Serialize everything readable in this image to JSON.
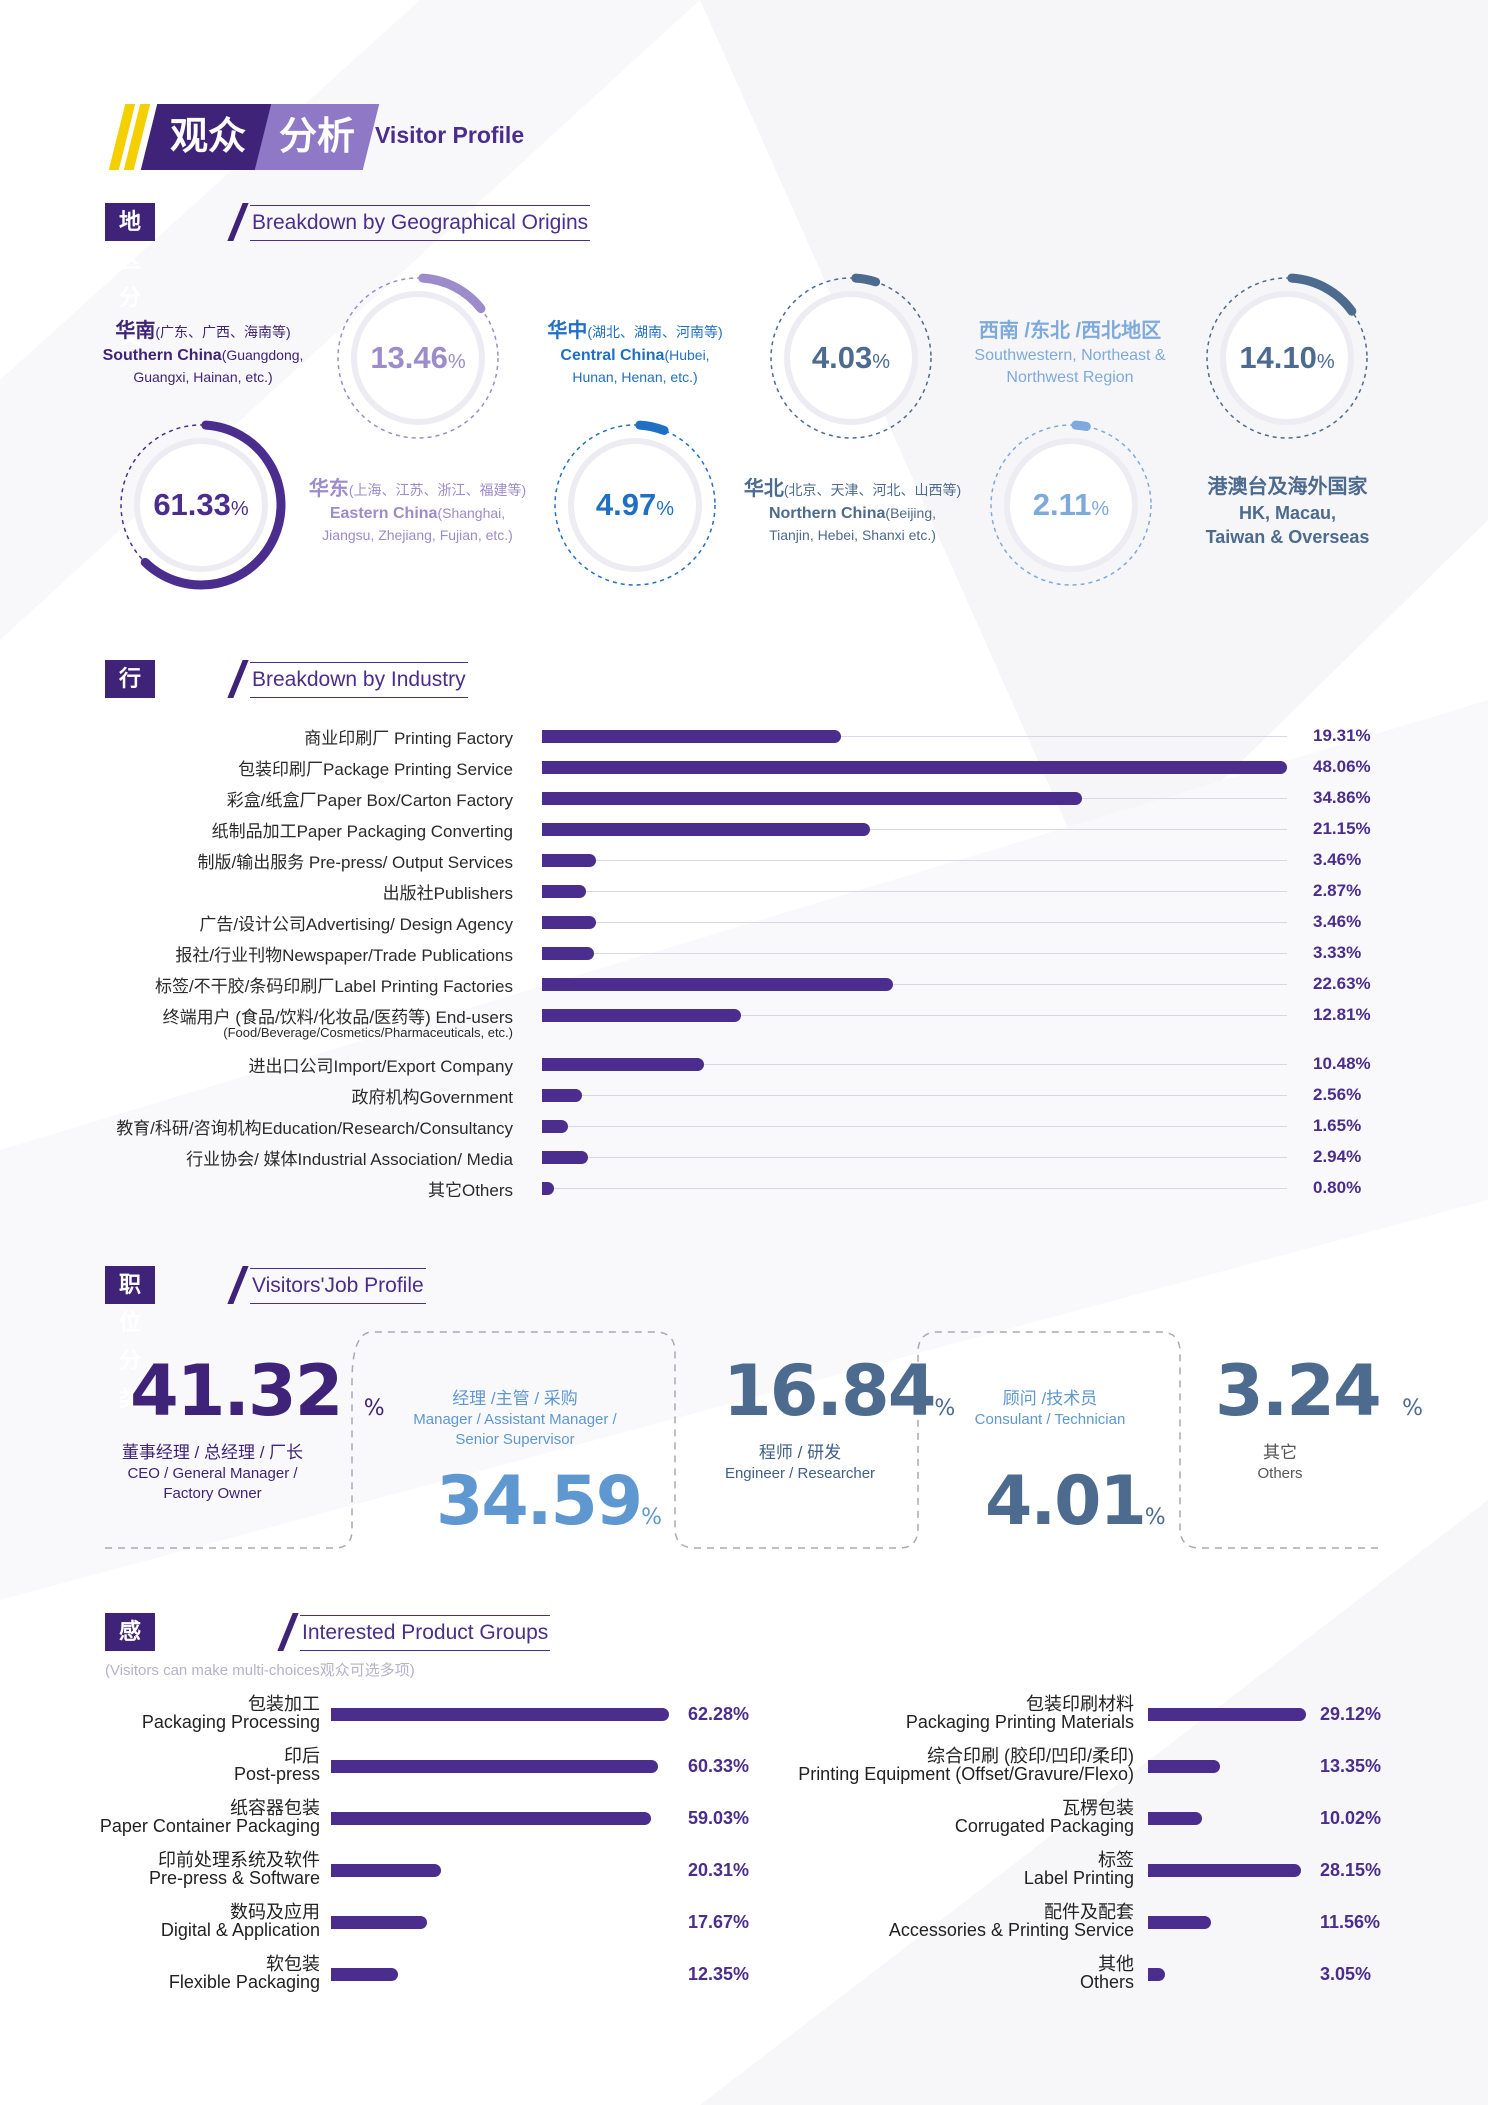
{
  "colors": {
    "purple": "#4a2d8c",
    "dark_purple": "#3f2378",
    "yellow": "#f5d000",
    "light_purple": "#9c8ccb",
    "steel": "#4d6a8f",
    "blue": "#1f6fc4",
    "sky": "#7ea9dc"
  },
  "header": {
    "title_cn_1": "观众",
    "title_cn_2": "分析",
    "title_en": "Visitor Profile"
  },
  "sections": {
    "region": {
      "cn": "地区分类",
      "en": "Breakdown by Geographical Origins"
    },
    "industry": {
      "cn": "行业分类",
      "en": "Breakdown by Industry"
    },
    "job": {
      "cn": "职位分类",
      "en": "Visitors'Job Profile"
    },
    "product": {
      "cn": "感兴趣之展品",
      "en": "Interested Product Groups",
      "note": "(Visitors can make multi-choices观众可选多项)"
    }
  },
  "chart_data": [
    {
      "type": "pie",
      "regions": [
        {
          "cn": "华南",
          "cn_detail": "(广东、广西、海南等)",
          "en": "Southern China",
          "en_detail_1": "(Guangdong,",
          "en_detail_2": "Guangxi, Hainan, etc.)",
          "value": 13.46,
          "pct": "13.46",
          "color": "#9c8ccb"
        },
        {
          "cn": "华东",
          "cn_detail": "(上海、江苏、浙江、福建等)",
          "en": "Eastern China",
          "en_detail_1": "(Shanghai,",
          "en_detail_2": "Jiangsu, Zhejiang, Fujian, etc.)",
          "value": 61.33,
          "pct": "61.33",
          "color": "#4a2d8c"
        },
        {
          "cn": "华中",
          "cn_detail": "(湖北、湖南、河南等)",
          "en": "Central China",
          "en_detail_1": "(Hubei,",
          "en_detail_2": "Hunan, Henan, etc.)",
          "value": 4.97,
          "pct": "4.97",
          "color": "#1f6fc4"
        },
        {
          "cn": "华北",
          "cn_detail": "(北京、天津、河北、山西等)",
          "en": "Northern China",
          "en_detail_1": "(Beijing,",
          "en_detail_2": "Tianjin, Hebei, Shanxi etc.)",
          "value": 4.03,
          "pct": "4.03",
          "color": "#4d6a8f"
        },
        {
          "cn": "西南 /东北 /西北地区",
          "en_1": "Southwestern, Northeast &",
          "en_2": "Northwest Region",
          "value": 2.11,
          "pct": "2.11",
          "color": "#7ea9dc"
        },
        {
          "cn": "港澳台及海外国家",
          "en_1": "HK, Macau,",
          "en_2": "Taiwan & Overseas",
          "value": 14.1,
          "pct": "14.10",
          "color": "#4d6a8f"
        }
      ],
      "percent_sign": "%"
    },
    {
      "type": "bar",
      "title": "Breakdown by Industry",
      "xlim": [
        0,
        48.06
      ],
      "categories": [
        "商业印刷厂 Printing Factory",
        "包装印刷厂Package Printing Service",
        "彩盒/纸盒厂Paper Box/Carton Factory",
        "纸制品加工Paper Packaging Converting",
        "制版/输出服务 Pre-press/ Output Services",
        "出版社Publishers",
        "广告/设计公司Advertising/ Design Agency",
        "报社/行业刊物Newspaper/Trade Publications",
        "标签/不干胶/条码印刷厂Label Printing Factories",
        "终端用户 (食品/饮料/化妆品/医药等) End-users",
        "进出口公司Import/Export Company",
        "政府机构Government",
        "教育/科研/咨询机构Education/Research/Consultancy",
        "行业协会/ 媒体Industrial Association/ Media",
        "其它Others"
      ],
      "sub_label": "(Food/Beverage/Cosmetics/Pharmaceuticals, etc.)",
      "values": [
        19.31,
        48.06,
        34.86,
        21.15,
        3.46,
        2.87,
        3.46,
        3.33,
        22.63,
        12.81,
        10.48,
        2.56,
        1.65,
        2.94,
        0.8
      ],
      "labels": [
        "19.31%",
        "48.06%",
        "34.86%",
        "21.15%",
        "3.46%",
        "2.87%",
        "3.46%",
        "3.33%",
        "22.63%",
        "12.81%",
        "10.48%",
        "2.56%",
        "1.65%",
        "2.94%",
        "0.80%"
      ]
    },
    {
      "type": "table",
      "title": "Visitors'Job Profile",
      "items": [
        {
          "value": "41.32",
          "cn": "董事经理 / 总经理 / 厂长",
          "en_1": "CEO / General Manager /",
          "en_2": "Factory Owner"
        },
        {
          "value": "34.59",
          "cn": "经理 /主管 / 采购",
          "en_1": "Manager / Assistant Manager /",
          "en_2": "Senior Supervisor"
        },
        {
          "value": "16.84",
          "cn": "程师 / 研发",
          "en_1": "Engineer / Researcher"
        },
        {
          "value": "4.01",
          "cn": "顾问 /技术员",
          "en_1": "Consulant / Technician"
        },
        {
          "value": "3.24",
          "cn": "其它",
          "en_1": "Others"
        }
      ],
      "percent_sign": "%"
    },
    {
      "type": "bar",
      "title": "Interested Product Groups",
      "xlim": [
        0,
        62.28
      ],
      "left": [
        {
          "cn": "包装加工",
          "en": "Packaging Processing",
          "value": 62.28,
          "label": "62.28%"
        },
        {
          "cn": "印后",
          "en": "Post-press",
          "value": 60.33,
          "label": "60.33%"
        },
        {
          "cn": "纸容器包装",
          "en": "Paper Container Packaging",
          "value": 59.03,
          "label": "59.03%"
        },
        {
          "cn": "印前处理系统及软件",
          "en": "Pre-press & Software",
          "value": 20.31,
          "label": "20.31%"
        },
        {
          "cn": "数码及应用",
          "en": "Digital & Application",
          "value": 17.67,
          "label": "17.67%"
        },
        {
          "cn": "软包装",
          "en": "Flexible Packaging",
          "value": 12.35,
          "label": "12.35%"
        }
      ],
      "right": [
        {
          "cn": "包装印刷材料",
          "en": "Packaging Printing Materials",
          "value": 29.12,
          "label": "29.12%"
        },
        {
          "cn": "综合印刷 (胶印/凹印/柔印)",
          "en": "Printing Equipment (Offset/Gravure/Flexo)",
          "value": 13.35,
          "label": "13.35%"
        },
        {
          "cn": "瓦楞包装",
          "en": "Corrugated Packaging",
          "value": 10.02,
          "label": "10.02%"
        },
        {
          "cn": "标签",
          "en": "Label Printing",
          "value": 28.15,
          "label": "28.15%"
        },
        {
          "cn": "配件及配套",
          "en": "Accessories & Printing Service",
          "value": 11.56,
          "label": "11.56%"
        },
        {
          "cn": "其他",
          "en": "Others",
          "value": 3.05,
          "label": "3.05%"
        }
      ]
    }
  ]
}
